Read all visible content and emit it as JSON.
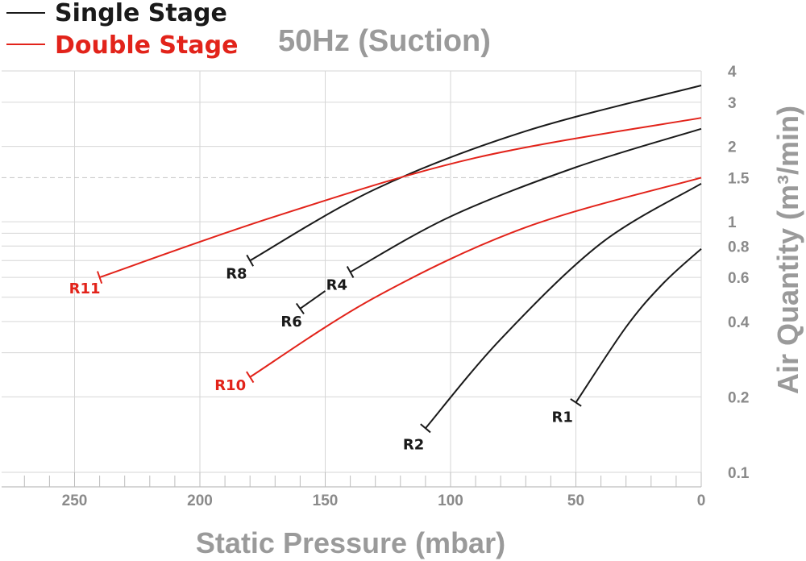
{
  "chart_data": {
    "type": "line",
    "title": "50Hz (Suction)",
    "xlabel": "Static Pressure (mbar)",
    "ylabel": "Air Quantity (m³/min)",
    "xlim": [
      0,
      280
    ],
    "x_reversed": true,
    "ylim": [
      0.1,
      4
    ],
    "y_scale": "log",
    "x_ticks": [
      250,
      200,
      150,
      100,
      50,
      0
    ],
    "y_ticks": [
      {
        "value": 4,
        "label": "4"
      },
      {
        "value": 3,
        "label": "3"
      },
      {
        "value": 2,
        "label": "2"
      },
      {
        "value": 1.5,
        "label": "1.5"
      },
      {
        "value": 1,
        "label": "1"
      },
      {
        "value": 0.8,
        "label": "0.8"
      },
      {
        "value": 0.6,
        "label": "0.6"
      },
      {
        "value": 0.4,
        "label": "0.4"
      },
      {
        "value": 0.2,
        "label": "0.2"
      },
      {
        "value": 0.1,
        "label": "0.1"
      }
    ],
    "legend": {
      "placement": "top-left",
      "entries": [
        {
          "label": "Single Stage",
          "color": "#1a1a1a"
        },
        {
          "label": "Double Stage",
          "color": "#e2231a"
        }
      ]
    },
    "series": [
      {
        "name": "R1",
        "stage": "Single Stage",
        "color": "#1a1a1a",
        "x": [
          50,
          30,
          15,
          0
        ],
        "y": [
          0.19,
          0.38,
          0.57,
          0.78
        ]
      },
      {
        "name": "R2",
        "stage": "Single Stage",
        "color": "#1a1a1a",
        "x": [
          110,
          80,
          40,
          0
        ],
        "y": [
          0.15,
          0.34,
          0.82,
          1.42
        ]
      },
      {
        "name": "R6",
        "stage": "Single Stage",
        "color": "#1a1a1a",
        "x": [
          160,
          150
        ],
        "y": [
          0.45,
          0.53
        ]
      },
      {
        "name": "R4",
        "stage": "Single Stage",
        "color": "#1a1a1a",
        "x": [
          140,
          100,
          50,
          0
        ],
        "y": [
          0.63,
          1.05,
          1.65,
          2.35
        ]
      },
      {
        "name": "R8",
        "stage": "Single Stage",
        "color": "#1a1a1a",
        "x": [
          180,
          130,
          70,
          0
        ],
        "y": [
          0.7,
          1.35,
          2.3,
          3.5
        ]
      },
      {
        "name": "R10",
        "stage": "Double Stage",
        "color": "#e2231a",
        "x": [
          180,
          130,
          70,
          0
        ],
        "y": [
          0.24,
          0.5,
          0.95,
          1.5
        ]
      },
      {
        "name": "R11",
        "stage": "Double Stage",
        "color": "#e2231a",
        "x": [
          240,
          170,
          90,
          0
        ],
        "y": [
          0.6,
          1.05,
          1.8,
          2.6
        ]
      }
    ]
  }
}
